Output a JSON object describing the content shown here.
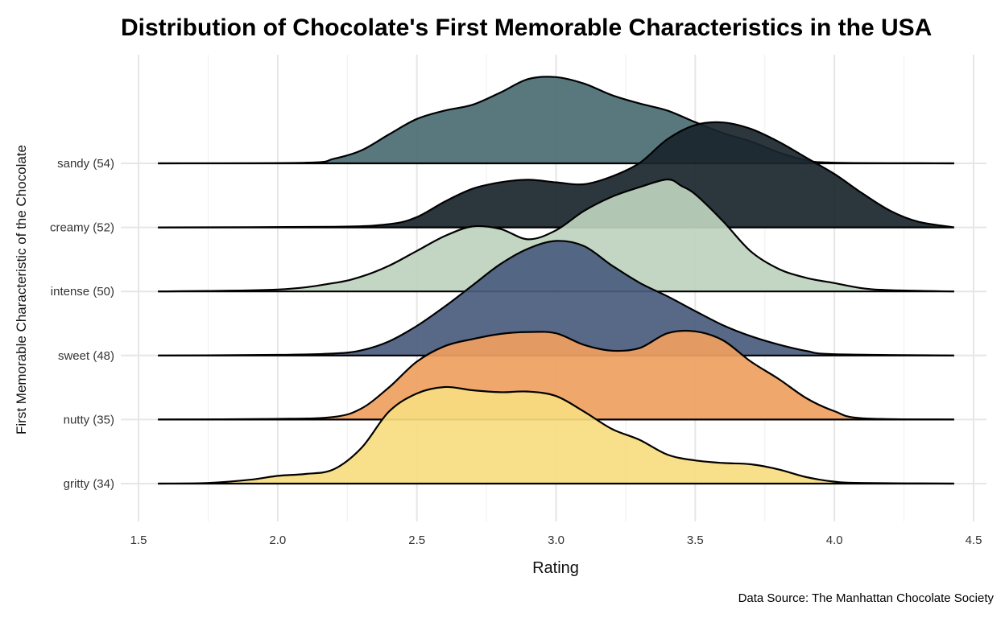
{
  "chart_data": {
    "type": "ridgeline",
    "title": "Distribution of Chocolate's First Memorable Characteristics in the USA",
    "xlabel": "Rating",
    "ylabel": "First Memorable Characteristic of the Chocolate",
    "caption": "Data Source: The Manhattan Chocolate Society",
    "xlim": [
      1.5,
      4.5
    ],
    "x_ticks": [
      "1.5",
      "2.0",
      "2.5",
      "3.0",
      "3.5",
      "4.0",
      "4.5"
    ],
    "grid": true,
    "legend": "none",
    "series": [
      {
        "label": "gritty (34)",
        "color": "#F7DC80",
        "points": [
          [
            1.57,
            0
          ],
          [
            1.75,
            0.01
          ],
          [
            1.9,
            0.06
          ],
          [
            2.0,
            0.12
          ],
          [
            2.1,
            0.15
          ],
          [
            2.2,
            0.22
          ],
          [
            2.3,
            0.55
          ],
          [
            2.4,
            1.12
          ],
          [
            2.5,
            1.4
          ],
          [
            2.6,
            1.5
          ],
          [
            2.7,
            1.45
          ],
          [
            2.8,
            1.42
          ],
          [
            2.9,
            1.43
          ],
          [
            3.0,
            1.36
          ],
          [
            3.1,
            1.12
          ],
          [
            3.2,
            0.85
          ],
          [
            3.3,
            0.68
          ],
          [
            3.4,
            0.45
          ],
          [
            3.5,
            0.36
          ],
          [
            3.6,
            0.32
          ],
          [
            3.7,
            0.3
          ],
          [
            3.8,
            0.22
          ],
          [
            3.9,
            0.1
          ],
          [
            4.0,
            0.03
          ],
          [
            4.1,
            0.01
          ],
          [
            4.43,
            0
          ]
        ]
      },
      {
        "label": "nutty (35)",
        "color": "#EFA060",
        "points": [
          [
            1.57,
            0
          ],
          [
            2.0,
            0.01
          ],
          [
            2.2,
            0.04
          ],
          [
            2.3,
            0.17
          ],
          [
            2.4,
            0.5
          ],
          [
            2.5,
            0.9
          ],
          [
            2.6,
            1.14
          ],
          [
            2.7,
            1.25
          ],
          [
            2.8,
            1.33
          ],
          [
            2.9,
            1.36
          ],
          [
            3.0,
            1.34
          ],
          [
            3.1,
            1.16
          ],
          [
            3.2,
            1.07
          ],
          [
            3.3,
            1.11
          ],
          [
            3.4,
            1.34
          ],
          [
            3.5,
            1.37
          ],
          [
            3.6,
            1.23
          ],
          [
            3.7,
            0.9
          ],
          [
            3.8,
            0.63
          ],
          [
            3.9,
            0.33
          ],
          [
            4.0,
            0.13
          ],
          [
            4.1,
            0.02
          ],
          [
            4.43,
            0
          ]
        ]
      },
      {
        "label": "sweet (48)",
        "color": "#4A5C7E",
        "points": [
          [
            1.57,
            0
          ],
          [
            2.0,
            0.01
          ],
          [
            2.2,
            0.03
          ],
          [
            2.3,
            0.08
          ],
          [
            2.4,
            0.22
          ],
          [
            2.5,
            0.46
          ],
          [
            2.6,
            0.76
          ],
          [
            2.7,
            1.09
          ],
          [
            2.8,
            1.42
          ],
          [
            2.9,
            1.66
          ],
          [
            3.0,
            1.78
          ],
          [
            3.1,
            1.7
          ],
          [
            3.2,
            1.4
          ],
          [
            3.3,
            1.13
          ],
          [
            3.4,
            0.92
          ],
          [
            3.5,
            0.69
          ],
          [
            3.6,
            0.47
          ],
          [
            3.7,
            0.3
          ],
          [
            3.8,
            0.17
          ],
          [
            3.9,
            0.07
          ],
          [
            4.0,
            0.02
          ],
          [
            4.43,
            0
          ]
        ]
      },
      {
        "label": "intense (50)",
        "color": "#BED3BE",
        "points": [
          [
            1.57,
            0
          ],
          [
            2.0,
            0.03
          ],
          [
            2.2,
            0.13
          ],
          [
            2.3,
            0.23
          ],
          [
            2.4,
            0.4
          ],
          [
            2.5,
            0.63
          ],
          [
            2.6,
            0.86
          ],
          [
            2.7,
            1.01
          ],
          [
            2.8,
            0.97
          ],
          [
            2.9,
            0.81
          ],
          [
            3.0,
            0.95
          ],
          [
            3.1,
            1.25
          ],
          [
            3.2,
            1.47
          ],
          [
            3.3,
            1.62
          ],
          [
            3.4,
            1.74
          ],
          [
            3.45,
            1.64
          ],
          [
            3.5,
            1.51
          ],
          [
            3.6,
            1.09
          ],
          [
            3.7,
            0.62
          ],
          [
            3.8,
            0.35
          ],
          [
            3.9,
            0.21
          ],
          [
            4.0,
            0.13
          ],
          [
            4.1,
            0.05
          ],
          [
            4.2,
            0.02
          ],
          [
            4.43,
            0
          ]
        ]
      },
      {
        "label": "creamy (52)",
        "color": "#1A252D",
        "points": [
          [
            1.57,
            0
          ],
          [
            2.2,
            0.01
          ],
          [
            2.4,
            0.05
          ],
          [
            2.5,
            0.16
          ],
          [
            2.6,
            0.4
          ],
          [
            2.7,
            0.6
          ],
          [
            2.8,
            0.7
          ],
          [
            2.9,
            0.74
          ],
          [
            3.0,
            0.7
          ],
          [
            3.1,
            0.67
          ],
          [
            3.2,
            0.79
          ],
          [
            3.3,
            1.0
          ],
          [
            3.4,
            1.37
          ],
          [
            3.5,
            1.59
          ],
          [
            3.6,
            1.63
          ],
          [
            3.7,
            1.53
          ],
          [
            3.8,
            1.33
          ],
          [
            3.9,
            1.08
          ],
          [
            4.0,
            0.83
          ],
          [
            4.1,
            0.53
          ],
          [
            4.2,
            0.26
          ],
          [
            4.3,
            0.09
          ],
          [
            4.43,
            0
          ]
        ]
      },
      {
        "label": "sandy (54)",
        "color": "#4A6C72",
        "points": [
          [
            1.57,
            0
          ],
          [
            2.1,
            0.01
          ],
          [
            2.2,
            0.07
          ],
          [
            2.3,
            0.2
          ],
          [
            2.4,
            0.45
          ],
          [
            2.5,
            0.69
          ],
          [
            2.6,
            0.82
          ],
          [
            2.7,
            0.91
          ],
          [
            2.8,
            1.1
          ],
          [
            2.9,
            1.31
          ],
          [
            3.0,
            1.34
          ],
          [
            3.1,
            1.24
          ],
          [
            3.2,
            1.06
          ],
          [
            3.3,
            0.93
          ],
          [
            3.4,
            0.82
          ],
          [
            3.5,
            0.64
          ],
          [
            3.6,
            0.47
          ],
          [
            3.7,
            0.34
          ],
          [
            3.8,
            0.17
          ],
          [
            3.9,
            0.05
          ],
          [
            4.0,
            0.01
          ],
          [
            4.43,
            0
          ]
        ]
      }
    ]
  }
}
